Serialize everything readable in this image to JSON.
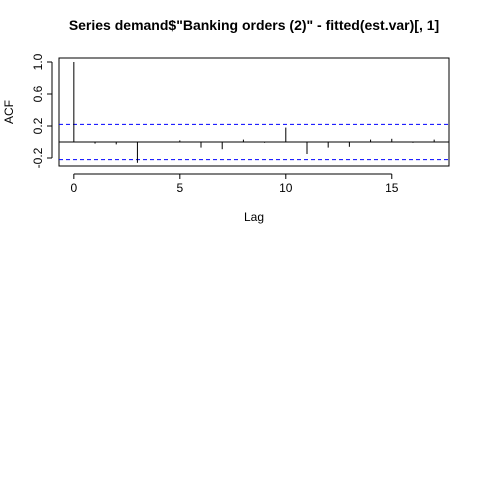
{
  "chart_data": {
    "type": "acf",
    "title": "Series  demand$\"Banking orders (2)\" - fitted(est.var)[, 1]",
    "xlabel": "Lag",
    "ylabel": "ACF",
    "xlim": [
      -0.7,
      17.7
    ],
    "ylim": [
      -0.3,
      1.05
    ],
    "xticks": [
      0,
      5,
      10,
      15
    ],
    "yticks": [
      -0.2,
      0.2,
      0.6,
      1.0
    ],
    "ytick_labels": [
      "-0.2",
      "0.2",
      "0.6",
      "1.0"
    ],
    "lags": [
      0,
      1,
      2,
      3,
      4,
      5,
      6,
      7,
      8,
      9,
      10,
      11,
      12,
      13,
      14,
      15,
      16,
      17
    ],
    "values": [
      1.0,
      -0.02,
      -0.03,
      -0.26,
      0.0,
      0.02,
      -0.07,
      -0.09,
      0.03,
      -0.01,
      0.18,
      -0.15,
      -0.07,
      -0.06,
      0.03,
      0.04,
      -0.01,
      0.03
    ],
    "ci": 0.22,
    "ci_color": "#0000ff",
    "bar_color": "#000000"
  }
}
